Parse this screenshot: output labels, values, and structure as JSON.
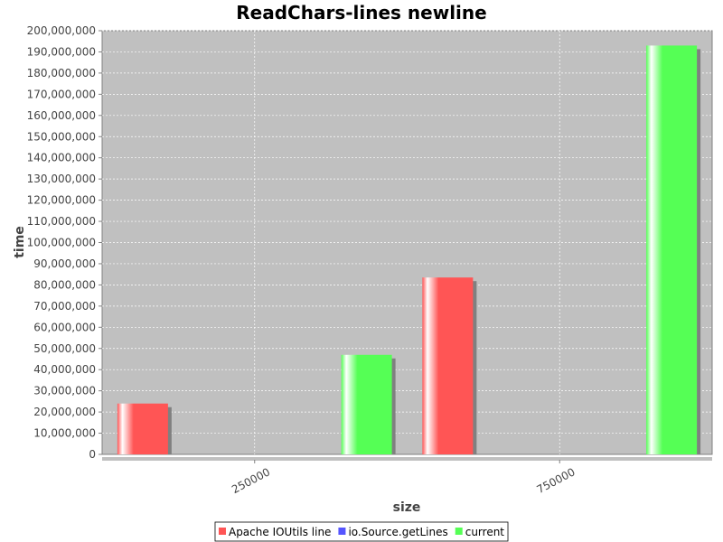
{
  "chart_data": {
    "type": "bar",
    "title": "ReadChars-lines newline",
    "xlabel": "size",
    "ylabel": "time",
    "categories": [
      "250000",
      "750000"
    ],
    "series": [
      {
        "name": "Apache IOUtils line",
        "color": "#ff5555",
        "values": [
          24000000,
          83500000
        ]
      },
      {
        "name": "io.Source.getLines",
        "color": "#5555ff",
        "values": [
          0,
          0
        ]
      },
      {
        "name": "current",
        "color": "#55ff55",
        "values": [
          47000000,
          193000000
        ]
      }
    ],
    "ylim": [
      0,
      200000000
    ],
    "ytick_step": 10000000,
    "grid": true,
    "legend_position": "bottom"
  }
}
